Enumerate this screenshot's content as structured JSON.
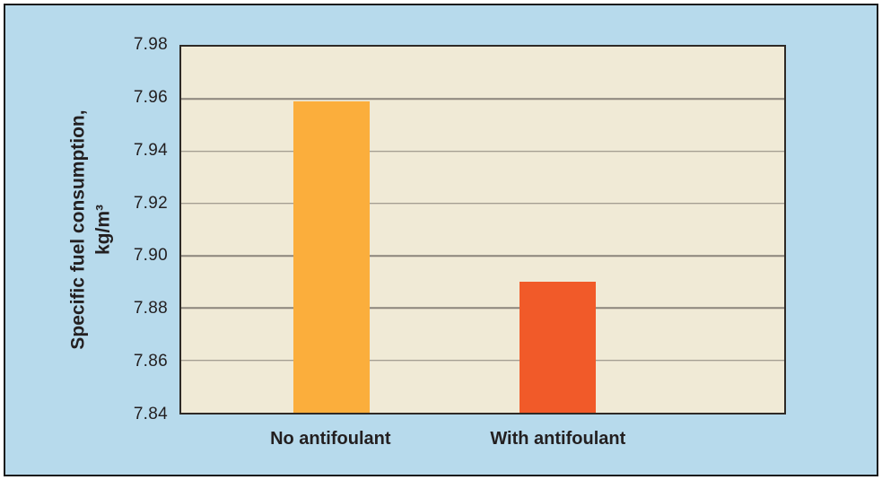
{
  "chart_data": {
    "type": "bar",
    "title": "",
    "categories": [
      "No antifoulant",
      "With antifoulant"
    ],
    "values": [
      7.959,
      7.89
    ],
    "bar_colors": [
      "#FBAE3C",
      "#F15A29"
    ],
    "ylabel_line1": "Specific fuel consumption,",
    "ylabel_line2": "kg/m³",
    "xlabel": "",
    "ylim": [
      7.84,
      7.98
    ],
    "ytick_step": 0.02,
    "ytick_labels": [
      "7.84",
      "7.86",
      "7.88",
      "7.90",
      "7.92",
      "7.94",
      "7.96",
      "7.98"
    ],
    "grid": "horizontal",
    "legend": "none",
    "layout": {
      "bar_center_pct": [
        24.9,
        62.4
      ],
      "bar_width_pct": 12.6
    }
  },
  "colors": {
    "panel_bg": "#B7DAEC",
    "plot_bg": "#F0EAD6",
    "gridline": "#8B847B",
    "plot_border": "#2E2A26",
    "frame_border": "#1A1A1A",
    "text": "#231F20"
  }
}
